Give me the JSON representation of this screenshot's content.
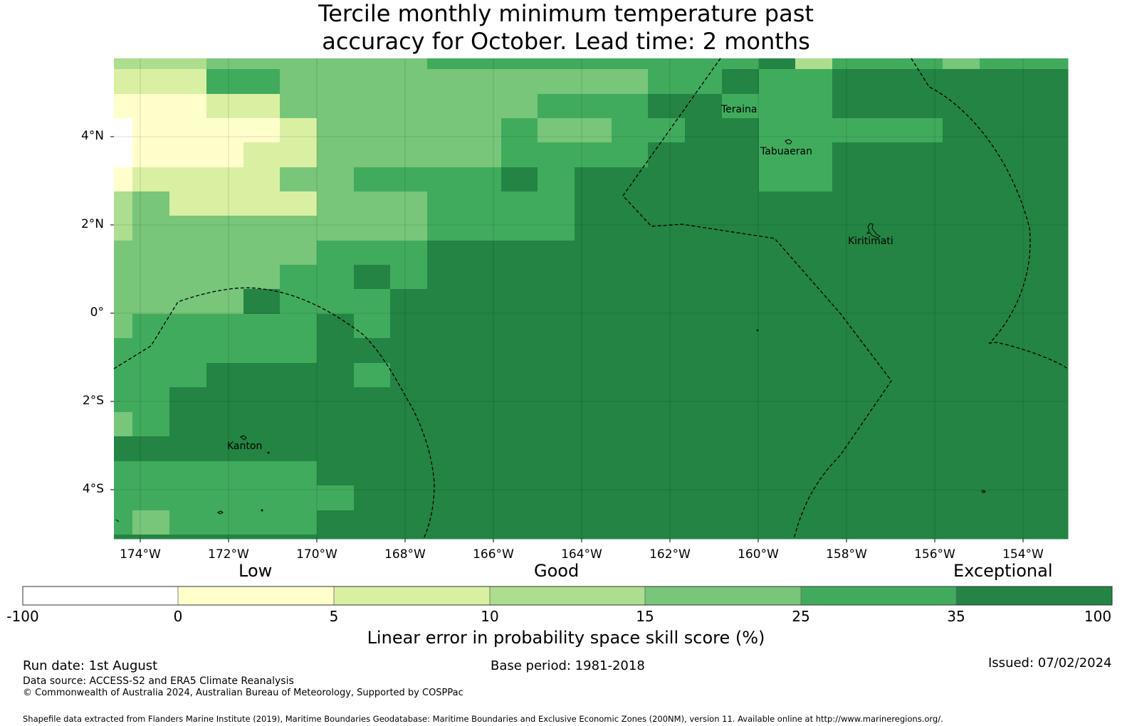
{
  "title": {
    "line1": "Tercile monthly minimum temperature past",
    "line2": "accuracy for October. Lead time: 2 months"
  },
  "map": {
    "lat_labels": [
      "4°N",
      "2°N",
      "0°",
      "2°S",
      "4°S"
    ],
    "lon_labels": [
      "174°W",
      "172°W",
      "170°W",
      "168°W",
      "166°W",
      "164°W",
      "162°W",
      "160°W",
      "158°W",
      "156°W",
      "154°W"
    ],
    "islands": [
      "Teraina",
      "Tabuaeran",
      "Kiritimati",
      "Kanton"
    ]
  },
  "colorbar": {
    "categories": [
      "Low",
      "Good",
      "Exceptional"
    ],
    "ticks": [
      "-100",
      "0",
      "5",
      "10",
      "15",
      "25",
      "35",
      "100"
    ],
    "colors": [
      "#ffffff",
      "#ffffcc",
      "#d9f0a3",
      "#addd8e",
      "#78c679",
      "#41ab5d",
      "#238443"
    ],
    "label": "Linear error in probability space skill score (%)"
  },
  "footer": {
    "run_date": "Run date: 1st August",
    "base_period": "Base period: 1981-2018",
    "issued": "Issued: 07/02/2024",
    "data_source": "Data source: ACCESS-S2 and ERA5 Climate Reanalysis",
    "copyright": "© Commonwealth of Australia 2024, Australian Bureau of Meteorology, Supported by COSPPac",
    "shapefile": "Shapefile data extracted from Flanders Marine Institute (2019), Maritime Boundaries Geodatabase: Maritime Boundaries and Exclusive Economic Zones (200NM), version 11. Available online at http://www.marineregions.org/."
  }
}
